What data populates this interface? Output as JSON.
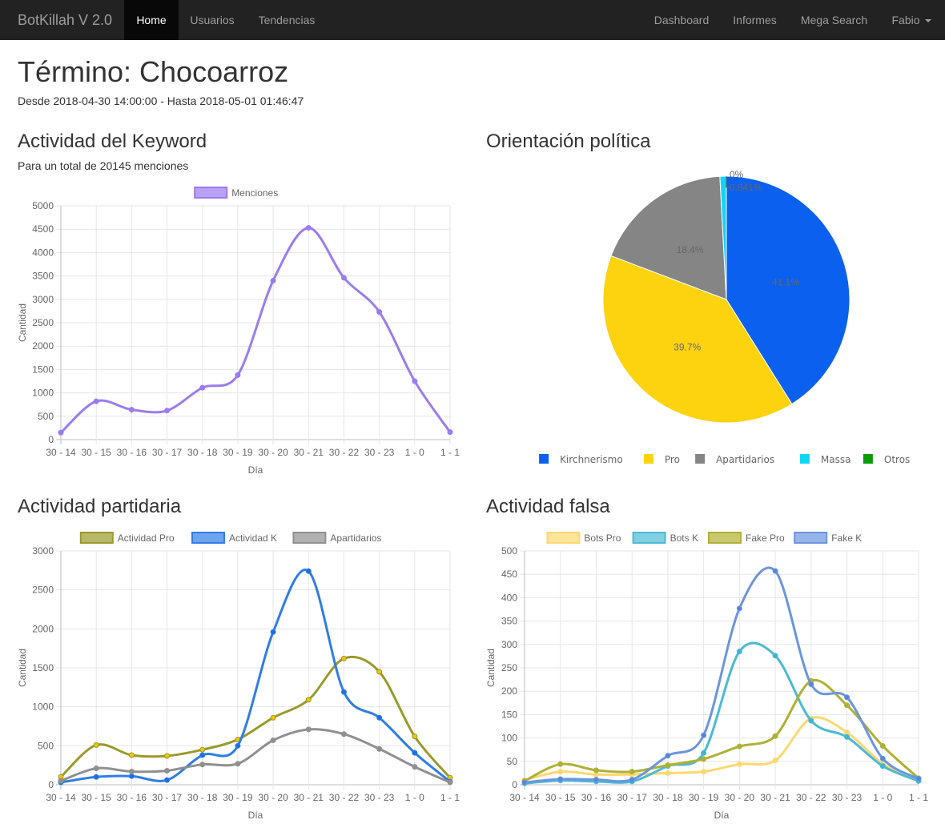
{
  "nav": {
    "brand": "BotKillah V 2.0",
    "left": [
      "Home",
      "Usuarios",
      "Tendencias"
    ],
    "right": [
      "Dashboard",
      "Informes",
      "Mega Search",
      "Fabio"
    ]
  },
  "header": {
    "title": "Término: Chocoarroz",
    "range": "Desde 2018-04-30 14:00:00 - Hasta 2018-05-01 01:46:47"
  },
  "sections": {
    "keyword_title": "Actividad del Keyword",
    "keyword_sub": "Para un total de 20145 menciones",
    "politica_title": "Orientación política",
    "partidaria_title": "Actividad partidaria",
    "falsa_title": "Actividad falsa"
  },
  "chart_data": [
    {
      "id": "keyword",
      "type": "line",
      "categories": [
        "30 - 14",
        "30 - 15",
        "30 - 16",
        "30 - 17",
        "30 - 18",
        "30 - 19",
        "30 - 20",
        "30 - 21",
        "30 - 22",
        "30 - 23",
        "1 - 0",
        "1 - 1"
      ],
      "series": [
        {
          "name": "Menciones",
          "color": "#9b7bf0",
          "values": [
            150,
            820,
            640,
            620,
            1110,
            1380,
            3400,
            4530,
            3460,
            2730,
            1250,
            160
          ]
        }
      ],
      "xlabel": "Día",
      "ylabel": "Cantidad",
      "ylim": [
        0,
        5000
      ],
      "yticks": [
        0,
        500,
        1000,
        1500,
        2000,
        2500,
        3000,
        3500,
        4000,
        4500,
        5000
      ],
      "grid": true,
      "legend": "top"
    },
    {
      "id": "politica",
      "type": "pie",
      "categories": [
        "Kirchnerismo",
        "Pro",
        "Apartidarios",
        "Massa",
        "Otros"
      ],
      "values": [
        41.1,
        39.7,
        18.4,
        0.841,
        0
      ],
      "labels": [
        "41.1%",
        "39.7%",
        "18.4%",
        "0.841%",
        "0%"
      ],
      "colors": [
        "#0b60ef",
        "#fdd310",
        "#858585",
        "#0fd6f7",
        "#0a9c0a"
      ],
      "legend": "bottom"
    },
    {
      "id": "partidaria",
      "type": "line",
      "categories": [
        "30 - 14",
        "30 - 15",
        "30 - 16",
        "30 - 17",
        "30 - 18",
        "30 - 19",
        "30 - 20",
        "30 - 21",
        "30 - 22",
        "30 - 23",
        "1 - 0",
        "1 - 1"
      ],
      "series": [
        {
          "name": "Actividad Pro",
          "color": "#9a9a2c",
          "point": "#f2c500",
          "values": [
            100,
            510,
            380,
            370,
            450,
            580,
            860,
            1090,
            1620,
            1450,
            620,
            90
          ]
        },
        {
          "name": "Actividad K",
          "color": "#2f7de6",
          "point": "#1e6ee3",
          "values": [
            30,
            100,
            110,
            60,
            380,
            500,
            1960,
            2740,
            1190,
            860,
            410,
            40
          ]
        },
        {
          "name": "Apartidarios",
          "color": "#909090",
          "point": "#909090",
          "values": [
            50,
            210,
            170,
            180,
            260,
            270,
            570,
            710,
            650,
            460,
            230,
            30
          ]
        }
      ],
      "xlabel": "Día",
      "ylabel": "Cantidad",
      "ylim": [
        0,
        3000
      ],
      "yticks": [
        0,
        500,
        1000,
        1500,
        2000,
        2500,
        3000
      ],
      "grid": true,
      "legend": "top"
    },
    {
      "id": "falsa",
      "type": "line",
      "categories": [
        "30 - 14",
        "30 - 15",
        "30 - 16",
        "30 - 17",
        "30 - 18",
        "30 - 19",
        "30 - 20",
        "30 - 21",
        "30 - 22",
        "30 - 23",
        "1 - 0",
        "1 - 1"
      ],
      "series": [
        {
          "name": "Bots Pro",
          "color": "#fcd870",
          "point": "#fcd870",
          "values": [
            10,
            28,
            22,
            22,
            25,
            28,
            44,
            52,
            142,
            112,
            45,
            10
          ]
        },
        {
          "name": "Bots K",
          "color": "#4bbad5",
          "point": "#3cb4d4",
          "values": [
            3,
            9,
            7,
            7,
            40,
            68,
            285,
            276,
            137,
            102,
            40,
            8
          ]
        },
        {
          "name": "Fake Pro",
          "color": "#b0b035",
          "point": "#b0b035",
          "values": [
            8,
            44,
            31,
            28,
            42,
            55,
            82,
            104,
            222,
            170,
            83,
            14
          ]
        },
        {
          "name": "Fake K",
          "color": "#6b95de",
          "point": "#5686da",
          "values": [
            5,
            12,
            11,
            11,
            62,
            106,
            377,
            457,
            215,
            187,
            56,
            13
          ]
        }
      ],
      "xlabel": "Día",
      "ylabel": "Cantidad",
      "ylim": [
        0,
        500
      ],
      "yticks": [
        0,
        50,
        100,
        150,
        200,
        250,
        300,
        350,
        400,
        450,
        500
      ],
      "grid": true,
      "legend": "top"
    }
  ]
}
